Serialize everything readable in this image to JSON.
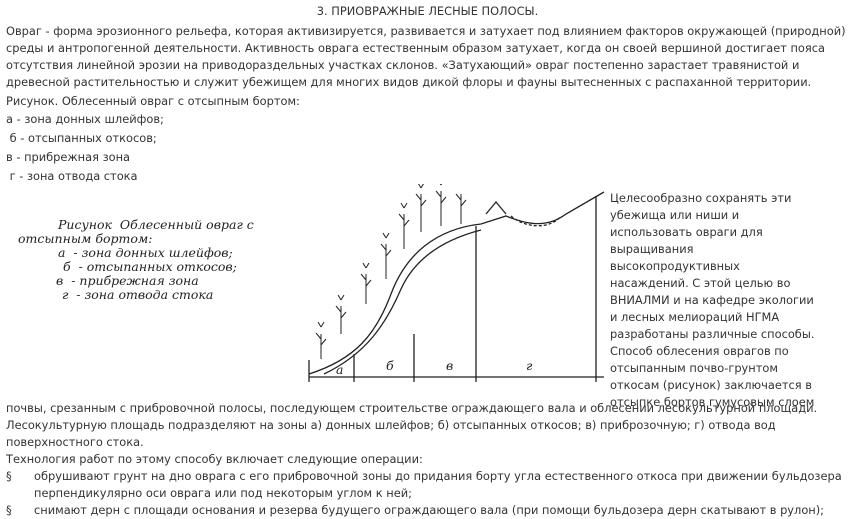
{
  "title": "3. ПРИОВРАЖНЫЕ ЛЕСНЫЕ ПОЛОСЫ.",
  "intro": "Овраг - форма эрозионного рельефа, которая активизируется, развивается и затухает под влиянием факторов окружающей (природной) среды и антропогенной деятельности. Активность оврага естественным образом затухает, когда он своей вершиной достигает пояса отсутствия линейной эрозии на приводораздельных участках склонов. «Затухающий» овраг постепенно зарастает травянистой и древесной растительностью и служит убежищем для многих видов дикой флоры и фауны вытесненных с распаханной территории.",
  "caption": "Рисунок. Облесенный овраг с отсыпным бортом:",
  "zones": [
    "а - зона донных шлейфов;",
    " б - отсыпанных откосов;",
    "в - прибрежная зона",
    " г - зона отвода стока"
  ],
  "figure": {
    "caption_lines": [
      "Рисунок  Облесенный овраг с",
      "отсыпным бортом:",
      "а  - зона донных шлейфов;",
      "б  - отсыпанных откосов;",
      "в  - прибрежная зона",
      "г  - зона отвода стока"
    ],
    "zone_letters": [
      "а",
      "б",
      "в",
      "г"
    ]
  },
  "paragraph_column": "Целесообразно сохранять эти убежища или ниши и использовать овраги для выращивания высокопродуктивных насаждений. С этой целью во ВНИАЛМИ и на кафедре экологии и лесных мелиораций НГМА разработаны различные способы. Способ облесения оврагов по отсыпанным почво-грунтом откосам (рисунок) заключается в отсыпке бортов гумусовым слоем",
  "paragraph_rest": "почвы, срезанным с прибровочной полосы, последующем строительстве ограждающего вала и облесении лесокультурной площади. Лесокультурную площадь подразделяют на зоны а) донных шлейфов; б) отсыпанных откосов; в) приброзочную; г) отвода вод поверхностного стока.",
  "technology": "Технология работ по этому способу включает следующие операции:",
  "operations": [
    {
      "bullet": "§",
      "text": "обрушивают грунт на дно оврага с его прибровочной зоны до придания борту угла естественного откоса при движении бульдозера перпендикулярно оси оврага или под некоторым углом к ней;"
    },
    {
      "bullet": "§",
      "text": "снимают дерн с площади основания и резерва будущего ограждающего вала (при помощи бульдозера дерн скатывают в рулон);"
    }
  ]
}
